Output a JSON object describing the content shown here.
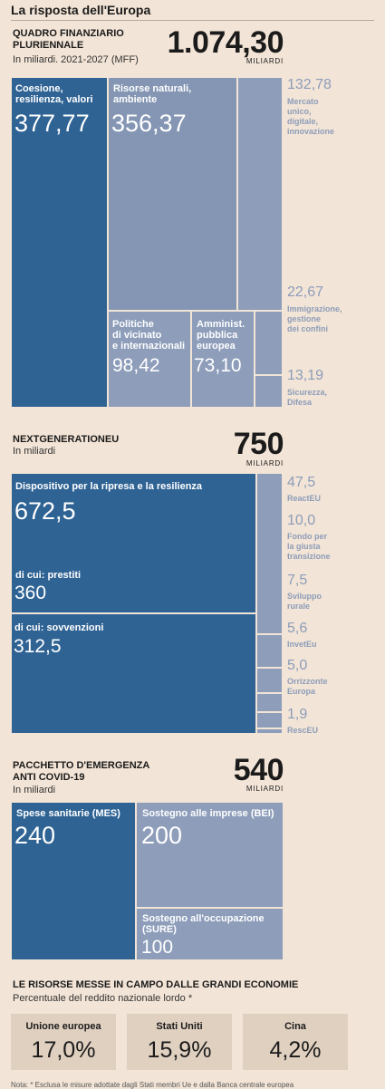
{
  "page_title": "La risposta dell'Europa",
  "colors": {
    "background": "#f2e4d6",
    "dark_blue": "#2f6394",
    "mid_blue": "#8496b3",
    "light_blue": "#8d9dba"
  },
  "chart_data": [
    {
      "type": "treemap",
      "title": "QUADRO FINANZIARIO\nPLURIENNALE",
      "subtitle": "In miliardi. 2021-2027 (MFF)",
      "total": "1.074,30",
      "total_unit": "MILIARDI",
      "items": [
        {
          "label": "Coesione,\nresilienza, valori",
          "value": 377.77,
          "display": "377,77"
        },
        {
          "label": "Risorse naturali,\nambiente",
          "value": 356.37,
          "display": "356,37"
        },
        {
          "label": "Mercato\nunico,\ndigitale,\ninnovazione",
          "value": 132.78,
          "display": "132,78"
        },
        {
          "label": "Politiche\ndi vicinato\ne internazionali",
          "value": 98.42,
          "display": "98,42"
        },
        {
          "label": "Amminist.\npubblica\neuropea",
          "value": 73.1,
          "display": "73,10"
        },
        {
          "label": "Immigrazione,\ngestione\ndei confini",
          "value": 22.67,
          "display": "22,67"
        },
        {
          "label": "Sicurezza,\nDifesa",
          "value": 13.19,
          "display": "13,19"
        }
      ]
    },
    {
      "type": "treemap",
      "title": "NEXTGENERATIONEU",
      "subtitle": "In miliardi",
      "total": "750",
      "total_unit": "MILIARDI",
      "main": {
        "label": "Dispositivo per la ripresa e la resilienza",
        "value": 672.5,
        "display": "672,5"
      },
      "main_breakdown": [
        {
          "label": "di cui: prestiti",
          "value": 360,
          "display": "360"
        },
        {
          "label": "di cui: sovvenzioni",
          "value": 312.5,
          "display": "312,5"
        }
      ],
      "items": [
        {
          "label": "ReactEU",
          "value": 47.5,
          "display": "47,5"
        },
        {
          "label": "Fondo per\nla giusta\ntransizione",
          "value": 10.0,
          "display": "10,0"
        },
        {
          "label": "Sviluppo\nrurale",
          "value": 7.5,
          "display": "7,5"
        },
        {
          "label": "InvetEu",
          "value": 5.6,
          "display": "5,6"
        },
        {
          "label": "Orrizzonte\nEuropa",
          "value": 5.0,
          "display": "5,0"
        },
        {
          "label": "RescEU",
          "value": 1.9,
          "display": "1,9"
        }
      ]
    },
    {
      "type": "treemap",
      "title": "PACCHETTO D'EMERGENZA\nANTI COVID-19",
      "subtitle": "In miliardi",
      "total": "540",
      "total_unit": "MILIARDI",
      "items": [
        {
          "label": "Spese sanitarie (MES)",
          "value": 240,
          "display": "240"
        },
        {
          "label": "Sostegno alle imprese (BEI)",
          "value": 200,
          "display": "200"
        },
        {
          "label": "Sostegno all'occupazione\n(SURE)",
          "value": 100,
          "display": "100"
        }
      ]
    },
    {
      "type": "table",
      "title": "LE RISORSE MESSE IN CAMPO DALLE GRANDI ECONOMIE",
      "subtitle": "Percentuale  del reddito nazionale lordo *",
      "items": [
        {
          "label": "Unione europea",
          "value": 17.0,
          "display": "17,0%"
        },
        {
          "label": "Stati Uniti",
          "value": 15.9,
          "display": "15,9%"
        },
        {
          "label": "Cina",
          "value": 4.2,
          "display": "4,2%"
        }
      ]
    }
  ],
  "footnote": "Nota: * Esclusa le misure adottate dagli Stati membri Ue e dalla Banca centrale europea"
}
